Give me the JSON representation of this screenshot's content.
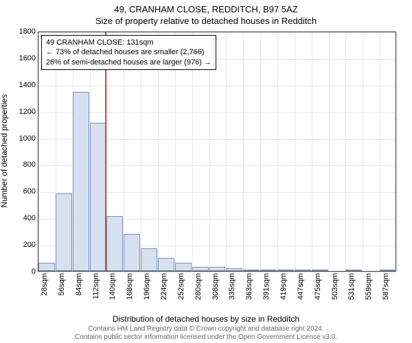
{
  "title": "49, CRANHAM CLOSE, REDDITCH, B97 5AZ",
  "subtitle": "Size of property relative to detached houses in Redditch",
  "chart": {
    "type": "histogram",
    "yAxisLabel": "Number of detached properties",
    "xAxisLabel": "Distribution of detached houses by size in Redditch",
    "ylim": [
      0,
      1800
    ],
    "yTicks": [
      0,
      200,
      400,
      600,
      800,
      1000,
      1200,
      1400,
      1600,
      1800
    ],
    "xTicks": [
      "28sqm",
      "56sqm",
      "84sqm",
      "112sqm",
      "140sqm",
      "168sqm",
      "196sqm",
      "224sqm",
      "252sqm",
      "280sqm",
      "308sqm",
      "335sqm",
      "363sqm",
      "391sqm",
      "419sqm",
      "447sqm",
      "475sqm",
      "503sqm",
      "531sqm",
      "559sqm",
      "587sqm"
    ],
    "bars": [
      60,
      580,
      1340,
      1110,
      410,
      280,
      170,
      100,
      60,
      30,
      30,
      20,
      10,
      10,
      5,
      5,
      5,
      0,
      5,
      0,
      5
    ],
    "barFill": "#d6e0f0",
    "barStroke": "#7a8db0",
    "gridColor": "#e6e6e6",
    "referenceValue": 131,
    "referenceColor": "#d44",
    "refLineFraction": 0.185,
    "annotation": {
      "line1": "49 CRANHAM CLOSE: 131sqm",
      "line2": "← 73% of detached houses are smaller (2,766)",
      "line3": "26% of semi-detached houses are larger (976) →"
    },
    "background": "#ffffff",
    "axisColor": "#333",
    "labelFontSize": 11
  },
  "attribution": {
    "line1": "Contains HM Land Registry data © Crown copyright and database right 2024.",
    "line2": "Contains public sector information licensed under the Open Government Licence v3.0."
  }
}
